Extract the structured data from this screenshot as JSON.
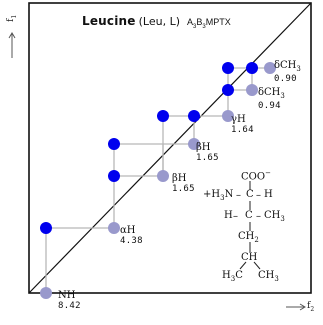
{
  "title": {
    "name": "Leucine",
    "abbr": "(Leu, L)",
    "code": "A3B3MPTX"
  },
  "axes": {
    "f1": "f1",
    "f2": "f2"
  },
  "colors": {
    "diagonal_peak": "#9999cc",
    "cross_peak": "#0000ee",
    "connector": "#b5b5b5",
    "frame": "#111111"
  },
  "peaks": [
    {
      "name": "NH",
      "ppm": "8.42"
    },
    {
      "name": "αH",
      "ppm": "4.38"
    },
    {
      "name": "βH",
      "ppm": "1.65"
    },
    {
      "name": "βH",
      "ppm": "1.65"
    },
    {
      "name": "γH",
      "ppm": "1.64"
    },
    {
      "name": "δCH3",
      "ppm": "0.94"
    },
    {
      "name": "δCH3",
      "ppm": "0.90"
    }
  ],
  "structure": {
    "coo": "COO",
    "coo_charge": "−",
    "n": "+H3N",
    "c": "C",
    "h_alpha": "H",
    "h_beta": "H",
    "c_beta": "C",
    "ch3_side": "CH3",
    "ch2": "CH2",
    "ch": "CH",
    "h3c": "H3C",
    "ch3": "CH3"
  }
}
